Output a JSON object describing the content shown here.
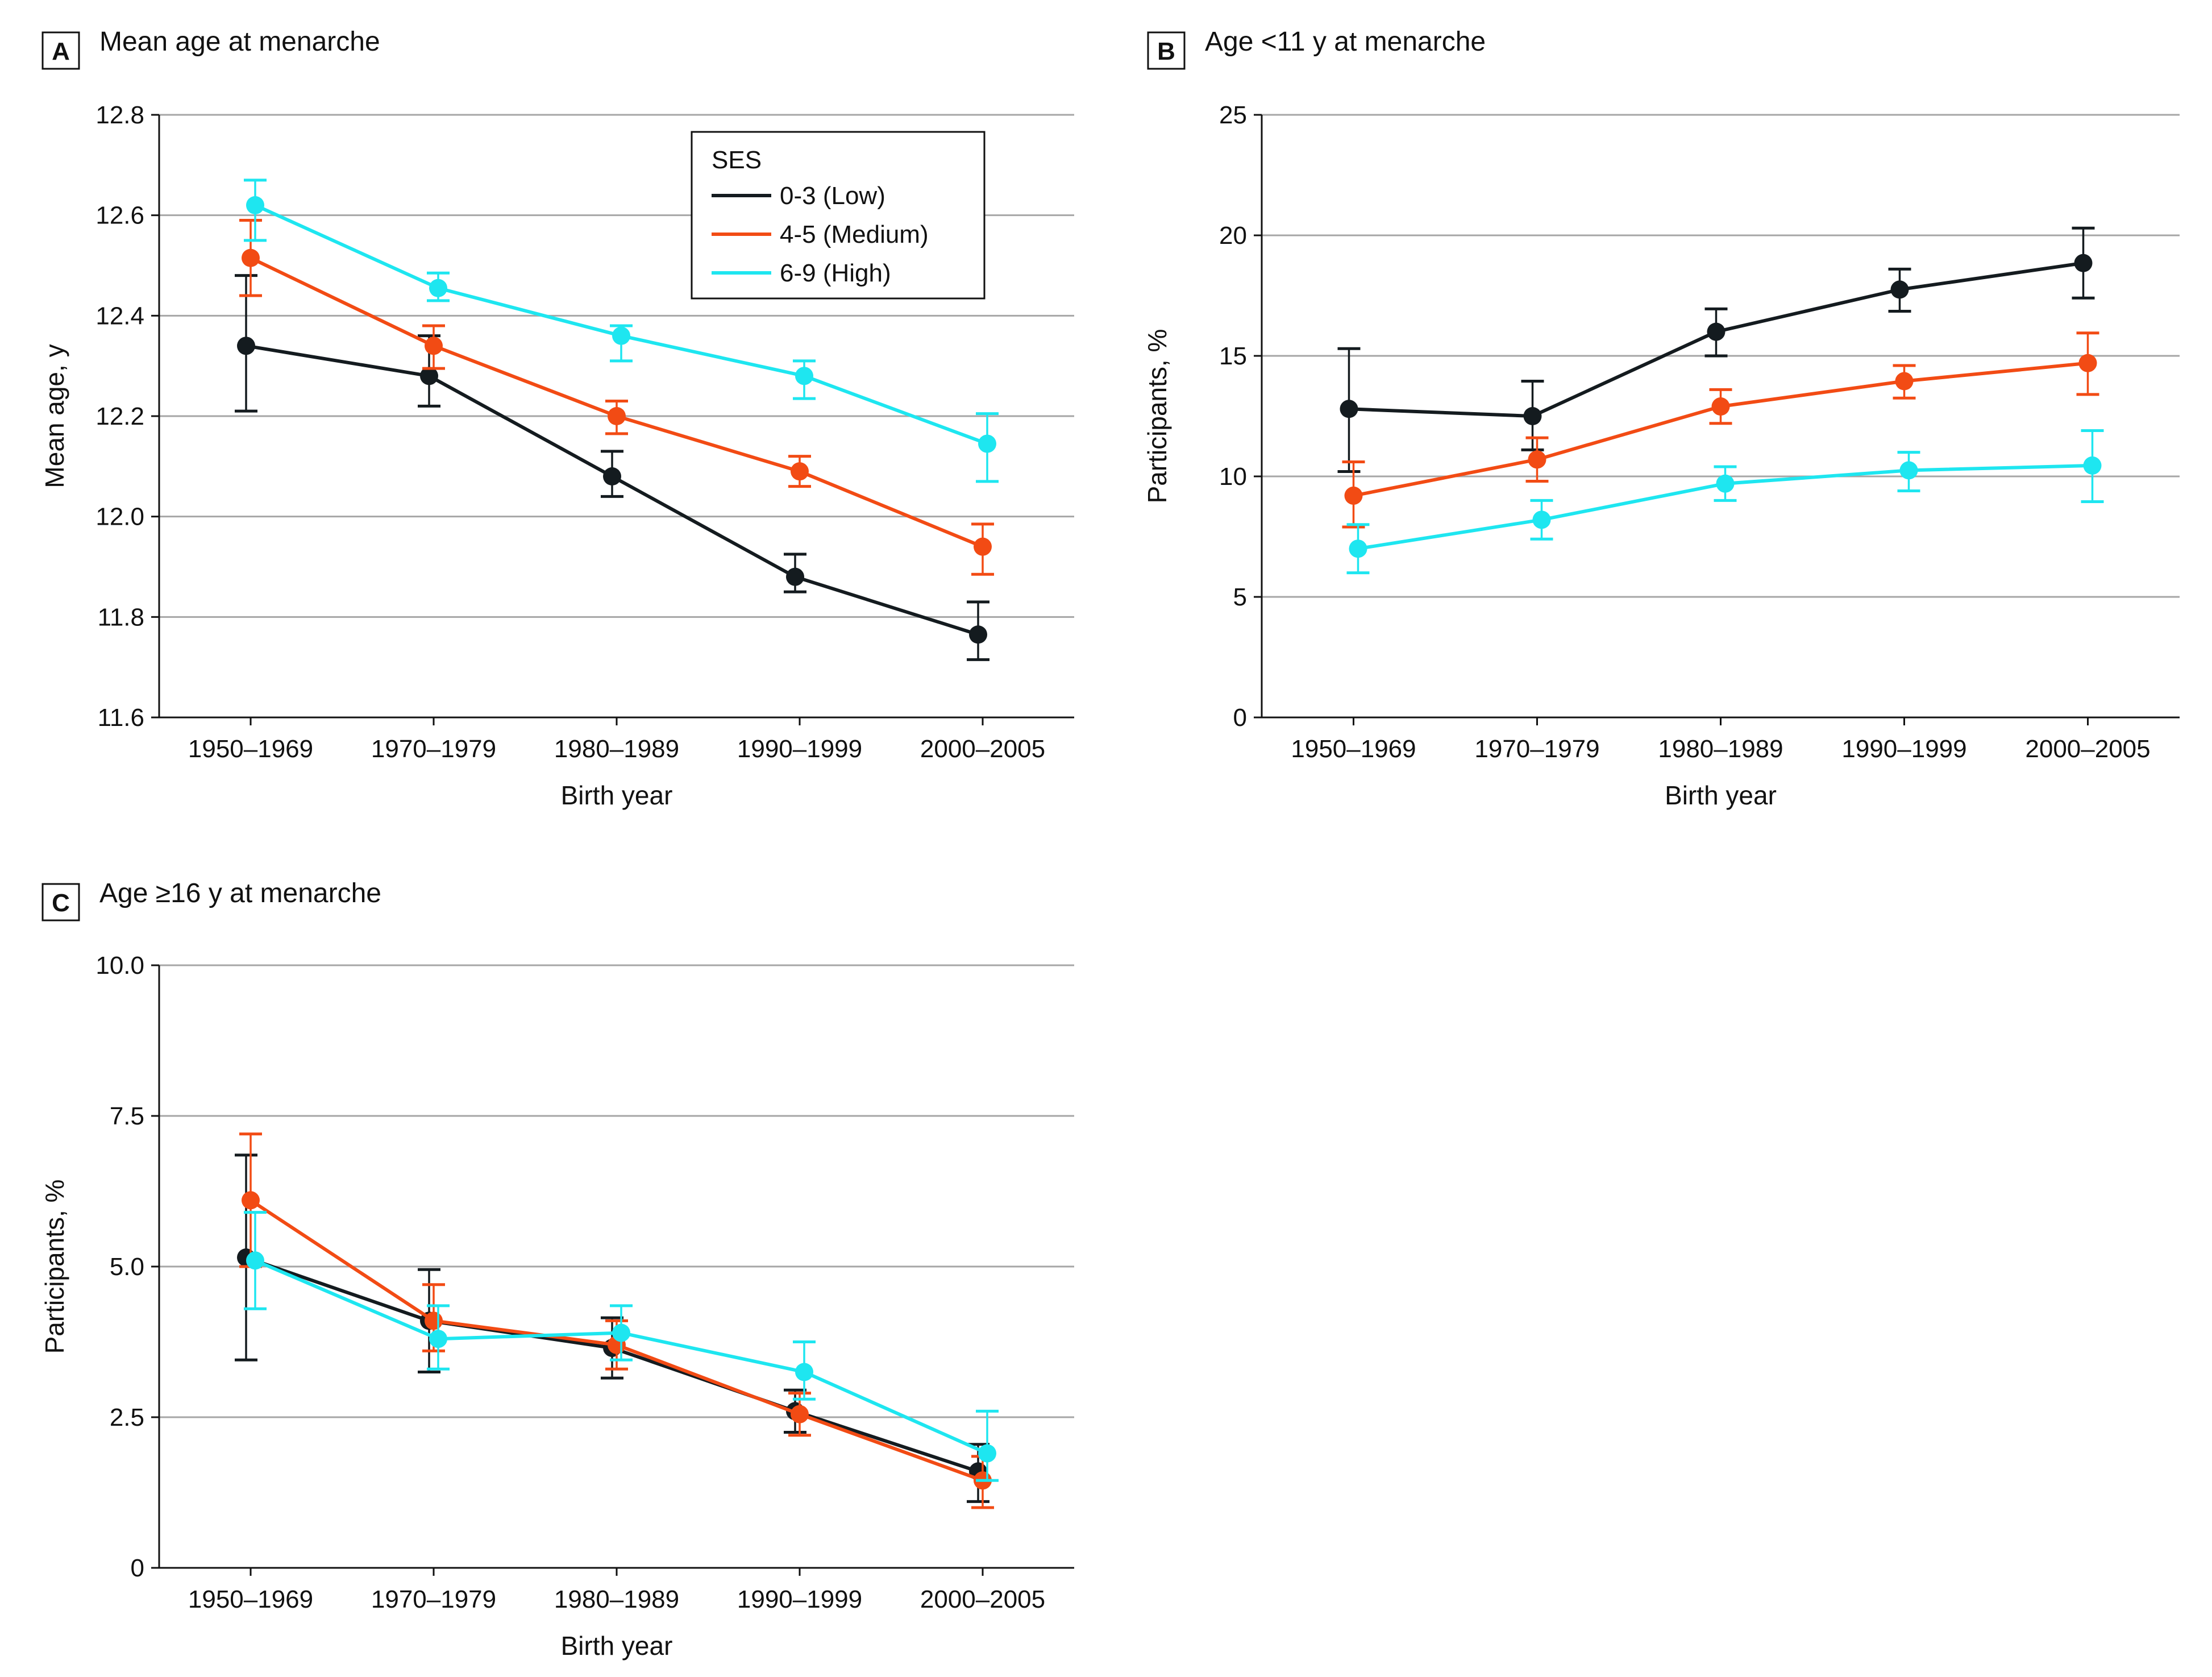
{
  "chart_data": [
    {
      "panel_letter": "A",
      "title": "Mean age at menarche",
      "type": "line",
      "xlabel": "Birth year",
      "ylabel": "Mean age, y",
      "categories": [
        "1950–1969",
        "1970–1979",
        "1980–1989",
        "1990–1999",
        "2000–2005"
      ],
      "ylim": [
        11.6,
        12.8
      ],
      "yticks": [
        11.6,
        11.8,
        12.0,
        12.2,
        12.4,
        12.6,
        12.8
      ],
      "yticklabels": [
        "11.6",
        "11.8",
        "12.0",
        "12.2",
        "12.4",
        "12.6",
        "12.8"
      ],
      "grid": true,
      "legend": {
        "title": "SES",
        "placement": "top-right",
        "entries": [
          "0-3 (Low)",
          "4-5 (Medium)",
          "6-9 (High)"
        ]
      },
      "series": [
        {
          "name": "0-3 (Low)",
          "color": "#141b1f",
          "values": [
            12.34,
            12.28,
            12.08,
            11.88,
            11.765
          ],
          "lower": [
            12.21,
            12.22,
            12.04,
            11.85,
            11.715
          ],
          "upper": [
            12.48,
            12.36,
            12.13,
            11.925,
            11.83
          ]
        },
        {
          "name": "4-5 (Medium)",
          "color": "#f24b14",
          "values": [
            12.515,
            12.34,
            12.2,
            12.09,
            11.94
          ],
          "lower": [
            12.44,
            12.295,
            12.165,
            12.06,
            11.885
          ],
          "upper": [
            12.59,
            12.38,
            12.23,
            12.12,
            11.985
          ]
        },
        {
          "name": "6-9 (High)",
          "color": "#1ee6f0",
          "values": [
            12.62,
            12.455,
            12.36,
            12.28,
            12.145
          ],
          "lower": [
            12.55,
            12.43,
            12.31,
            12.235,
            12.07
          ],
          "upper": [
            12.67,
            12.485,
            12.38,
            12.31,
            12.205
          ]
        }
      ]
    },
    {
      "panel_letter": "B",
      "title": "Age <11 y at menarche",
      "type": "line",
      "xlabel": "Birth year",
      "ylabel": "Participants, %",
      "categories": [
        "1950–1969",
        "1970–1979",
        "1980–1989",
        "1990–1999",
        "2000–2005"
      ],
      "ylim": [
        0,
        25
      ],
      "yticks": [
        0,
        5,
        10,
        15,
        20,
        25
      ],
      "yticklabels": [
        "0",
        "5",
        "10",
        "15",
        "20",
        "25"
      ],
      "grid": true,
      "series": [
        {
          "name": "0-3 (Low)",
          "color": "#141b1f",
          "values": [
            12.8,
            12.5,
            16.0,
            17.75,
            18.85
          ],
          "lower": [
            10.2,
            11.1,
            15.0,
            16.85,
            17.4
          ],
          "upper": [
            15.3,
            13.95,
            16.95,
            18.6,
            20.3
          ]
        },
        {
          "name": "4-5 (Medium)",
          "color": "#f24b14",
          "values": [
            9.2,
            10.7,
            12.9,
            13.95,
            14.7
          ],
          "lower": [
            7.9,
            9.8,
            12.2,
            13.25,
            13.4
          ],
          "upper": [
            10.6,
            11.6,
            13.6,
            14.6,
            15.95
          ]
        },
        {
          "name": "6-9 (High)",
          "color": "#1ee6f0",
          "values": [
            7.0,
            8.2,
            9.7,
            10.25,
            10.45
          ],
          "lower": [
            6.0,
            7.4,
            9.0,
            9.4,
            8.95
          ],
          "upper": [
            8.0,
            9.0,
            10.4,
            11.0,
            11.9
          ]
        }
      ]
    },
    {
      "panel_letter": "C",
      "title": "Age ≥16 y at menarche",
      "type": "line",
      "xlabel": "Birth year",
      "ylabel": "Participants, %",
      "categories": [
        "1950–1969",
        "1970–1979",
        "1980–1989",
        "1990–1999",
        "2000–2005"
      ],
      "ylim": [
        0,
        10
      ],
      "yticks": [
        0,
        2.5,
        5.0,
        7.5,
        10.0
      ],
      "yticklabels": [
        "0",
        "2.5",
        "5.0",
        "7.5",
        "10.0"
      ],
      "grid": true,
      "series": [
        {
          "name": "0-3 (Low)",
          "color": "#141b1f",
          "values": [
            5.15,
            4.1,
            3.65,
            2.6,
            1.6
          ],
          "lower": [
            3.45,
            3.25,
            3.15,
            2.25,
            1.1
          ],
          "upper": [
            6.85,
            4.95,
            4.15,
            2.95,
            2.05
          ]
        },
        {
          "name": "4-5 (Medium)",
          "color": "#f24b14",
          "values": [
            6.1,
            4.1,
            3.7,
            2.55,
            1.45
          ],
          "lower": [
            5.0,
            3.6,
            3.3,
            2.2,
            1.0
          ],
          "upper": [
            7.2,
            4.7,
            4.1,
            2.9,
            1.85
          ]
        },
        {
          "name": "6-9 (High)",
          "color": "#1ee6f0",
          "values": [
            5.1,
            3.8,
            3.9,
            3.25,
            1.9
          ],
          "lower": [
            4.3,
            3.3,
            3.45,
            2.8,
            1.45
          ],
          "upper": [
            5.9,
            4.35,
            4.35,
            3.75,
            2.6
          ]
        }
      ]
    }
  ]
}
